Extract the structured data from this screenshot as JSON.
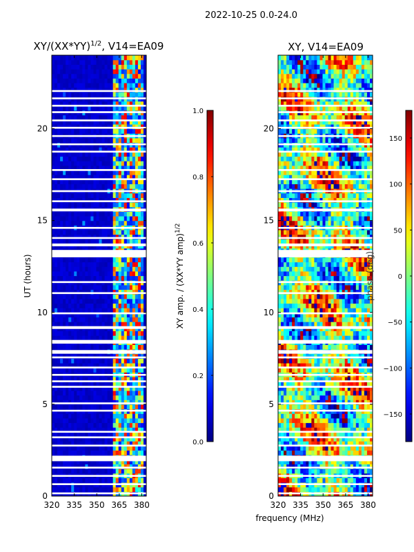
{
  "suptitle": "2022-10-25 0.0-24.0",
  "shared": {
    "xlabel": "frequency (MHz)",
    "ylabel": "UT (hours)",
    "xlim": [
      320,
      383
    ],
    "ylim": [
      0,
      24
    ],
    "xticks": [
      320,
      335,
      350,
      365,
      380
    ],
    "yticks": [
      0,
      5,
      10,
      15,
      20
    ]
  },
  "chart_data": [
    {
      "type": "heatmap",
      "title_base": "XY/(XX*YY)",
      "title_sup": "1/2",
      "title_suffix": ", V14=EA09",
      "xlabel": "frequency (MHz)",
      "ylabel": "UT (hours)",
      "xlim": [
        320,
        383
      ],
      "ylim": [
        0,
        24
      ],
      "colorbar": {
        "label_base": "XY amp. / (XX*YY amp)",
        "label_sup": "1/2",
        "range": [
          0.0,
          1.0
        ],
        "ticks": [
          "0.0",
          "0.2",
          "0.4",
          "0.6",
          "0.8",
          "1.0"
        ],
        "tick_values": [
          0.0,
          0.2,
          0.4,
          0.6,
          0.8,
          1.0
        ],
        "colormap": "jet"
      },
      "description_values": {
        "background_level": 0.05,
        "rfi_band_mhz": [
          361,
          381
        ],
        "rfi_band_level_range": [
          0.3,
          0.9
        ]
      }
    },
    {
      "type": "heatmap",
      "title": "XY, V14=EA09",
      "xlabel": "frequency (MHz)",
      "ylabel": "UT (hours)",
      "xlim": [
        320,
        383
      ],
      "ylim": [
        0,
        24
      ],
      "colorbar": {
        "label": "phase (deg)",
        "range": [
          -180,
          180
        ],
        "ticks": [
          "150",
          "100",
          "50",
          "0",
          "−50",
          "−100",
          "−150"
        ],
        "tick_values": [
          150,
          100,
          50,
          0,
          -50,
          -100,
          -150
        ],
        "colormap": "jet"
      }
    }
  ],
  "flagged_ut_bands": [
    [
      0.1,
      0.2
    ],
    [
      0.6,
      0.7
    ],
    [
      1.05,
      1.15
    ],
    [
      1.5,
      1.6
    ],
    [
      1.9,
      2.2
    ],
    [
      2.7,
      2.8
    ],
    [
      3.15,
      3.25
    ],
    [
      3.45,
      3.55
    ],
    [
      4.6,
      4.7
    ],
    [
      5.0,
      5.1
    ],
    [
      5.9,
      6.0
    ],
    [
      6.2,
      6.3
    ],
    [
      6.55,
      6.65
    ],
    [
      6.95,
      7.05
    ],
    [
      7.5,
      7.6
    ],
    [
      7.75,
      7.95
    ],
    [
      8.3,
      8.5
    ],
    [
      9.1,
      9.25
    ],
    [
      9.9,
      10.0
    ],
    [
      11.0,
      11.1
    ],
    [
      11.6,
      11.7
    ],
    [
      13.0,
      13.4
    ],
    [
      13.6,
      13.75
    ],
    [
      14.0,
      14.1
    ],
    [
      14.55,
      14.65
    ],
    [
      15.5,
      15.65
    ],
    [
      16.0,
      16.1
    ],
    [
      16.55,
      16.65
    ],
    [
      17.2,
      17.3
    ],
    [
      17.7,
      17.8
    ],
    [
      18.7,
      18.8
    ],
    [
      19.1,
      19.2
    ],
    [
      19.55,
      19.65
    ],
    [
      20.0,
      20.1
    ],
    [
      20.4,
      20.5
    ],
    [
      20.85,
      20.95
    ],
    [
      21.2,
      21.3
    ],
    [
      21.6,
      21.7
    ],
    [
      22.0,
      22.1
    ]
  ]
}
